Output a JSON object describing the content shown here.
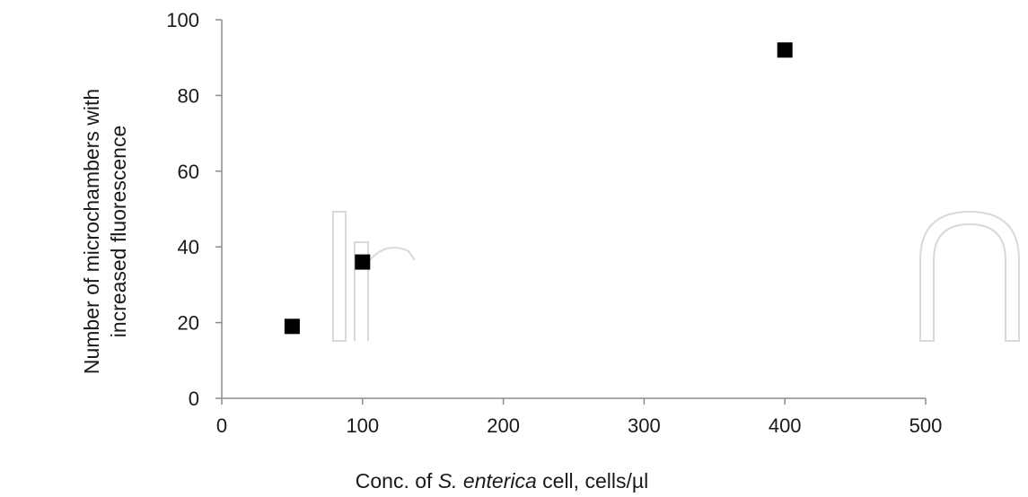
{
  "chart_data": {
    "type": "scatter",
    "xlabel_parts": [
      {
        "text": "Conc. of ",
        "italic": false
      },
      {
        "text": "S. enterica",
        "italic": true
      },
      {
        "text": " cell, cells/µl",
        "italic": false
      }
    ],
    "ylabel_lines": [
      "Number of microchambers with",
      "increased fluorescence"
    ],
    "xlim": [
      0,
      500
    ],
    "ylim": [
      0,
      100
    ],
    "xticks": [
      0,
      100,
      200,
      300,
      400,
      500
    ],
    "yticks": [
      0,
      20,
      40,
      60,
      80,
      100
    ],
    "grid": false,
    "legend": "none",
    "marker": "square",
    "marker_color": "#000000",
    "points": [
      {
        "x": 50,
        "y": 19
      },
      {
        "x": 100,
        "y": 36
      },
      {
        "x": 400,
        "y": 92
      }
    ]
  }
}
